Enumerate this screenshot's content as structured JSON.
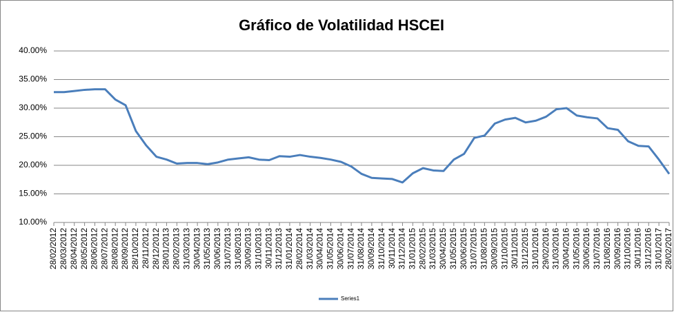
{
  "chart_data": {
    "type": "line",
    "title": "Gráfico de Volatilidad HSCEI",
    "categories": [
      "28/02/2012",
      "28/03/2012",
      "28/04/2012",
      "28/05/2012",
      "28/06/2012",
      "28/07/2012",
      "28/08/2012",
      "28/09/2012",
      "28/10/2012",
      "28/11/2012",
      "28/12/2012",
      "28/01/2013",
      "28/02/2013",
      "31/03/2013",
      "30/04/2013",
      "31/05/2013",
      "30/06/2013",
      "31/07/2013",
      "31/08/2013",
      "30/09/2013",
      "31/10/2013",
      "30/11/2013",
      "31/12/2013",
      "31/01/2014",
      "28/02/2014",
      "31/03/2014",
      "30/04/2014",
      "31/05/2014",
      "30/06/2014",
      "31/07/2014",
      "31/08/2014",
      "30/09/2014",
      "31/10/2014",
      "30/11/2014",
      "31/12/2014",
      "31/01/2015",
      "28/02/2015",
      "31/03/2015",
      "30/04/2015",
      "31/05/2015",
      "30/06/2015",
      "31/07/2015",
      "31/08/2015",
      "30/09/2015",
      "31/10/2015",
      "30/11/2015",
      "31/12/2015",
      "31/01/2016",
      "29/02/2016",
      "31/03/2016",
      "30/04/2016",
      "31/05/2016",
      "30/06/2016",
      "31/07/2016",
      "31/08/2016",
      "30/09/2016",
      "31/10/2016",
      "30/11/2016",
      "31/12/2016",
      "31/01/2017",
      "28/02/2017"
    ],
    "series": [
      {
        "name": "Series1",
        "color": "#4a7ebb",
        "values": [
          32.8,
          32.8,
          33.0,
          33.2,
          33.3,
          33.3,
          31.5,
          30.5,
          26.0,
          23.5,
          21.5,
          21.0,
          20.3,
          20.4,
          20.4,
          20.2,
          20.5,
          21.0,
          21.2,
          21.4,
          21.0,
          20.9,
          21.6,
          21.5,
          21.8,
          21.5,
          21.3,
          21.0,
          20.6,
          19.8,
          18.5,
          17.8,
          17.7,
          17.6,
          17.0,
          18.6,
          19.5,
          19.1,
          19.0,
          21.0,
          22.0,
          24.8,
          25.2,
          27.3,
          28.0,
          28.3,
          27.5,
          27.8,
          28.5,
          29.8,
          30.0,
          28.7,
          28.4,
          28.2,
          26.5,
          26.2,
          24.2,
          23.4,
          23.3,
          21.0,
          18.5
        ]
      }
    ],
    "ylim": [
      10,
      40
    ],
    "yticks": [
      {
        "value": 10,
        "label": "10.00%"
      },
      {
        "value": 15,
        "label": "15.00%"
      },
      {
        "value": 20,
        "label": "20.00%"
      },
      {
        "value": 25,
        "label": "25.00%"
      },
      {
        "value": 30,
        "label": "30.00%"
      },
      {
        "value": 35,
        "label": "35.00%"
      },
      {
        "value": 40,
        "label": "40.00%"
      }
    ],
    "grid": true,
    "legend": "bottom"
  }
}
